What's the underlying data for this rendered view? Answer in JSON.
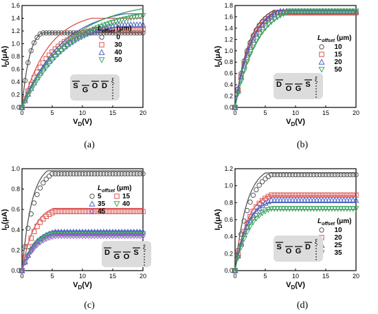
{
  "chart_data": [
    {
      "id": "a",
      "caption": "(a)",
      "type": "line",
      "xlabel": "V",
      "xlabel_sub": "D",
      "xlabel_unit": "(V)",
      "ylabel": "I",
      "ylabel_sub": "D",
      "ylabel_unit": "(μA)",
      "xlim": [
        0,
        20
      ],
      "ylim": [
        0,
        1.6
      ],
      "xticks": [
        0,
        5,
        10,
        15,
        20
      ],
      "yticks": [
        0.0,
        0.2,
        0.4,
        0.6,
        0.8,
        1.0,
        1.2,
        1.4,
        1.6
      ],
      "ytick_labels": [
        "0.0",
        "0.2",
        "0.4",
        "0.6",
        "0.8",
        "1.0",
        "1.2",
        "1.4",
        "1.6"
      ],
      "legend_title": "L",
      "legend_title_sub": "offset",
      "legend_unit": "(μm)",
      "legend_position": "right",
      "inset_electrodes": [
        "S",
        "G",
        "O",
        "D"
      ],
      "inset_marker": "ξ",
      "series": [
        {
          "name": "0",
          "marker": "circle",
          "color": "#555555",
          "sat": 1.17,
          "knee": 3.2,
          "line_sat": 1.17,
          "line_knee": 3.2
        },
        {
          "name": "30",
          "marker": "square",
          "color": "#d9534f",
          "sat": 1.22,
          "knee": 12.0,
          "line_sat": 1.4,
          "line_knee": 11.5
        },
        {
          "name": "40",
          "marker": "triangle",
          "color": "#4a5fc1",
          "sat": 1.3,
          "knee": 16.0,
          "line_sat": 1.47,
          "line_knee": 17.0
        },
        {
          "name": "50",
          "marker": "tridown",
          "color": "#3aa35c",
          "sat": 1.44,
          "knee": 20.0,
          "line_sat": 1.55,
          "line_knee": 20.0
        }
      ]
    },
    {
      "id": "b",
      "caption": "(b)",
      "type": "line",
      "xlabel": "V",
      "xlabel_sub": "D",
      "xlabel_unit": "(V)",
      "ylabel": "I",
      "ylabel_sub": "D",
      "ylabel_unit": "(μA)",
      "xlim": [
        0,
        20
      ],
      "ylim": [
        0,
        1.8
      ],
      "xticks": [
        0,
        5,
        10,
        15,
        20
      ],
      "yticks": [
        0.0,
        0.2,
        0.4,
        0.6,
        0.8,
        1.0,
        1.2,
        1.4,
        1.6,
        1.8
      ],
      "ytick_labels": [
        "0.0",
        "0.2",
        "0.4",
        "0.6",
        "0.8",
        "1.0",
        "1.2",
        "1.4",
        "1.6",
        "1.8"
      ],
      "legend_title": "L",
      "legend_title_sub": "offset",
      "legend_unit": "(μm)",
      "legend_position": "right",
      "inset_electrodes": [
        "D",
        "O",
        "G",
        "S"
      ],
      "inset_marker": "ξ",
      "series": [
        {
          "name": "10",
          "marker": "circle",
          "color": "#555555",
          "sat": 1.68,
          "knee": 6.5,
          "line_sat": 1.7,
          "line_knee": 6.2
        },
        {
          "name": "15",
          "marker": "square",
          "color": "#d9534f",
          "sat": 1.67,
          "knee": 7.0,
          "line_sat": 1.7,
          "line_knee": 6.8
        },
        {
          "name": "20",
          "marker": "triangle",
          "color": "#4a5fc1",
          "sat": 1.7,
          "knee": 7.5,
          "line_sat": 1.72,
          "line_knee": 7.3
        },
        {
          "name": "50",
          "marker": "tridown",
          "color": "#3aa35c",
          "sat": 1.7,
          "knee": 9.0,
          "line_sat": 1.7,
          "line_knee": 9.3
        }
      ]
    },
    {
      "id": "c",
      "caption": "(c)",
      "type": "line",
      "xlabel": "V",
      "xlabel_sub": "D",
      "xlabel_unit": "(V)",
      "ylabel": "I",
      "ylabel_sub": "D",
      "ylabel_unit": "(μA)",
      "xlim": [
        0,
        20
      ],
      "ylim": [
        0,
        1.0
      ],
      "xticks": [
        0,
        5,
        10,
        15,
        20
      ],
      "yticks": [
        0.0,
        0.2,
        0.4,
        0.6,
        0.8,
        1.0
      ],
      "ytick_labels": [
        "0.0",
        "0.2",
        "0.4",
        "0.6",
        "0.8",
        "1.0"
      ],
      "legend_title": "L",
      "legend_title_sub": "offset",
      "legend_unit": "(μm)",
      "legend_position": "right",
      "inset_electrodes": [
        "D",
        "G",
        "O",
        "S"
      ],
      "inset_marker": "ξ",
      "series": [
        {
          "name": "5",
          "marker": "circle",
          "color": "#555555",
          "sat": 0.95,
          "knee": 5.0,
          "line_sat": 0.98,
          "line_knee": 4.2
        },
        {
          "name": "15",
          "marker": "square",
          "color": "#d9534f",
          "sat": 0.58,
          "knee": 5.5,
          "line_sat": 0.61,
          "line_knee": 5.2
        },
        {
          "name": "35",
          "marker": "triangle",
          "color": "#4a5fc1",
          "sat": 0.38,
          "knee": 5.5,
          "line_sat": 0.39,
          "line_knee": 5.2
        },
        {
          "name": "40",
          "marker": "tridown",
          "color": "#3aa35c",
          "sat": 0.36,
          "knee": 5.5,
          "line_sat": 0.37,
          "line_knee": 5.2
        },
        {
          "name": "45",
          "marker": "diamond",
          "color": "#9b59d6",
          "sat": 0.34,
          "knee": 5.5,
          "line_sat": 0.35,
          "line_knee": 5.2
        }
      ]
    },
    {
      "id": "d",
      "caption": "(d)",
      "type": "line",
      "xlabel": "V",
      "xlabel_sub": "D",
      "xlabel_unit": "(V)",
      "ylabel": "I",
      "ylabel_sub": "D",
      "ylabel_unit": "(μA)",
      "xlim": [
        0,
        20
      ],
      "ylim": [
        0,
        1.2
      ],
      "xticks": [
        0,
        5,
        10,
        15,
        20
      ],
      "yticks": [
        0.0,
        0.2,
        0.4,
        0.6,
        0.8,
        1.0,
        1.2
      ],
      "ytick_labels": [
        "0.0",
        "0.2",
        "0.4",
        "0.6",
        "0.8",
        "1.0",
        "1.2"
      ],
      "legend_title": "L",
      "legend_title_sub": "offset",
      "legend_unit": "(μm)",
      "legend_position": "right",
      "inset_electrodes": [
        "S",
        "O",
        "G",
        "D"
      ],
      "inset_marker": "ξ",
      "series": [
        {
          "name": "10",
          "marker": "circle",
          "color": "#555555",
          "sat": 1.13,
          "knee": 6.0,
          "line_sat": 1.15,
          "line_knee": 5.0
        },
        {
          "name": "20",
          "marker": "square",
          "color": "#d9534f",
          "sat": 0.89,
          "knee": 6.0,
          "line_sat": 0.88,
          "line_knee": 5.5
        },
        {
          "name": "25",
          "marker": "triangle",
          "color": "#4a5fc1",
          "sat": 0.83,
          "knee": 6.0,
          "line_sat": 0.8,
          "line_knee": 5.5
        },
        {
          "name": "35",
          "marker": "tridown",
          "color": "#3aa35c",
          "sat": 0.73,
          "knee": 6.0,
          "line_sat": 0.72,
          "line_knee": 5.5
        }
      ]
    }
  ]
}
